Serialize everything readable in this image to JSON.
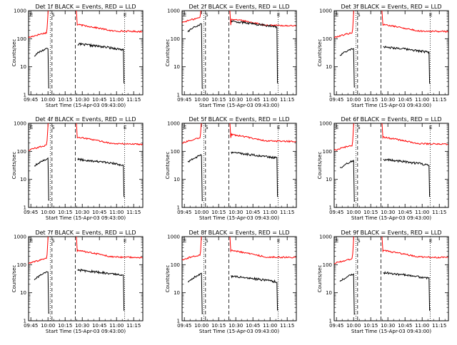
{
  "chart_data": {
    "type": "line",
    "xlabel": "Start Time (15-Apr-03 09:43:00)",
    "ylabel": "Counts/sec",
    "x_ticks": [
      "09:45",
      "10:00",
      "10:15",
      "10:30",
      "10:45",
      "11:00",
      "11:15"
    ],
    "y_ticks": [
      "1",
      "10",
      "100",
      "1000"
    ],
    "y_scale": "log",
    "ylim": [
      1,
      1000
    ],
    "xlim_minutes": [
      0,
      100
    ],
    "marker_labels": [
      "E",
      "S",
      "E"
    ],
    "series_colors": {
      "events": "#000000",
      "lld": "#ff0000"
    },
    "panels": [
      {
        "title": "Det 1f BLACK = Events, RED = LLD",
        "lld_base": 200,
        "ev_base": 50,
        "lld_start": 110,
        "ev_start": 50
      },
      {
        "title": "Det 2f BLACK = Events, RED = LLD",
        "lld_base": 320,
        "ev_base": 320,
        "lld_start": 380,
        "ev_start": 360
      },
      {
        "title": "Det 3f BLACK = Events, RED = LLD",
        "lld_base": 200,
        "ev_base": 40,
        "lld_start": 110,
        "ev_start": 50
      },
      {
        "title": "Det 4f BLACK = Events, RED = LLD",
        "lld_base": 200,
        "ev_base": 40,
        "lld_start": 110,
        "ev_start": 60
      },
      {
        "title": "Det 5f BLACK = Events, RED = LLD",
        "lld_base": 250,
        "ev_base": 70,
        "lld_start": 200,
        "ev_start": 80
      },
      {
        "title": "Det 6f BLACK = Events, RED = LLD",
        "lld_base": 200,
        "ev_base": 40,
        "lld_start": 110,
        "ev_start": 50
      },
      {
        "title": "Det 7f BLACK = Events, RED = LLD",
        "lld_base": 200,
        "ev_base": 50,
        "lld_start": 110,
        "ev_start": 60
      },
      {
        "title": "Det 8f BLACK = Events, RED = LLD",
        "lld_base": 200,
        "ev_base": 30,
        "lld_start": 150,
        "ev_start": 50
      },
      {
        "title": "Det 9f BLACK = Events, RED = LLD",
        "lld_base": 200,
        "ev_base": 40,
        "lld_start": 110,
        "ev_start": 50
      }
    ]
  }
}
